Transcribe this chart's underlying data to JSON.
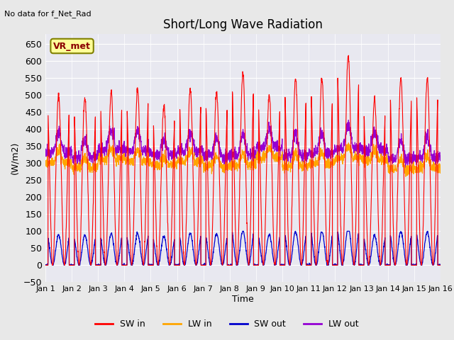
{
  "title": "Short/Long Wave Radiation",
  "xlabel": "Time",
  "ylabel": "(W/m2)",
  "top_left_text": "No data for f_Net_Rad",
  "box_label": "VR_met",
  "ylim": [
    -50,
    680
  ],
  "yticks": [
    -50,
    0,
    50,
    100,
    150,
    200,
    250,
    300,
    350,
    400,
    450,
    500,
    550,
    600,
    650
  ],
  "xlim_days": [
    0,
    15
  ],
  "xtick_labels": [
    "Jan 1",
    "Jan 2",
    "Jan 3",
    "Jan 4",
    "Jan 5",
    "Jan 6",
    "Jan 7",
    "Jan 8",
    "Jan 9",
    "Jan 10",
    "Jan 11",
    "Jan 12",
    "Jan 13",
    "Jan 14",
    "Jan 15",
    "Jan 16"
  ],
  "colors": {
    "SW_in": "#FF0000",
    "LW_in": "#FFA500",
    "SW_out": "#0000CD",
    "LW_out": "#9400D3"
  },
  "background_color": "#E8E8E8",
  "plot_bg_color": "#E8E8F0",
  "legend_labels": [
    "SW in",
    "LW in",
    "SW out",
    "LW out"
  ],
  "n_days": 15,
  "pts_per_day": 144,
  "SW_in_peaks": [
    500,
    490,
    510,
    520,
    470,
    520,
    510,
    565,
    500,
    550,
    550,
    615,
    490,
    550,
    550
  ],
  "LW_in_base": 300,
  "LW_out_base": 330,
  "SW_out_max": 100
}
